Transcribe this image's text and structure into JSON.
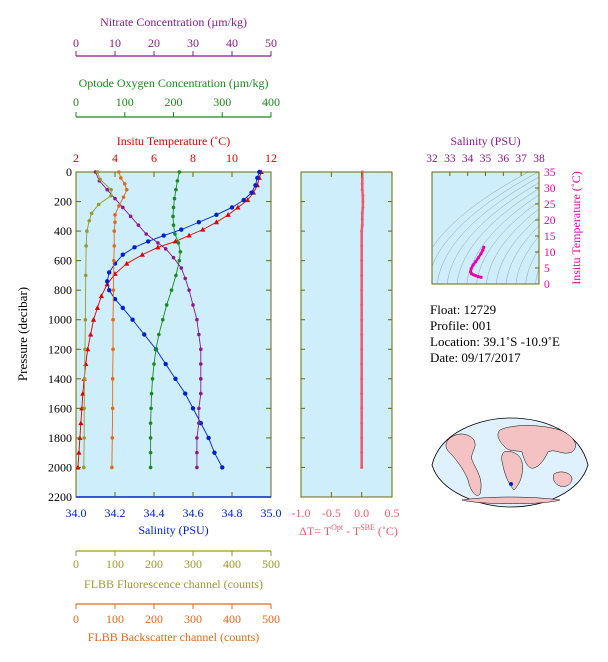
{
  "colors": {
    "nitrate": "#8b1a8b",
    "oxygen": "#1a8a1a",
    "temperature": "#e00000",
    "salinity": "#0022cc",
    "fluorescence": "#9a9a2a",
    "backscatter": "#e06a1a",
    "delta": "#ee5a6a",
    "panel_bg": "#cdeefa",
    "frame": "#6b6b00",
    "ts_accent": "#ee00aa"
  },
  "chart_data": [
    {
      "type": "line",
      "panel": "main-profile",
      "ylabel": "Pressure (decibar)",
      "ylim": [
        2200,
        0
      ],
      "yticks": [
        0,
        200,
        400,
        600,
        800,
        1000,
        1200,
        1400,
        1600,
        1800,
        2000,
        2200
      ],
      "axes": {
        "nitrate": {
          "label": "Nitrate Concentration (µm/kg)",
          "range": [
            0,
            50
          ],
          "ticks": [
            "0",
            "10",
            "20",
            "30",
            "40",
            "50"
          ]
        },
        "oxygen": {
          "label": "Optode Oxygen Concentration (µm/kg)",
          "range": [
            0,
            400
          ],
          "ticks": [
            "0",
            "100",
            "200",
            "300",
            "400"
          ]
        },
        "temperature": {
          "label": "Insitu Temperature (˚C)",
          "range": [
            2,
            12
          ],
          "ticks": [
            "2",
            "4",
            "6",
            "8",
            "10",
            "12"
          ]
        },
        "salinity": {
          "label": "Salinity (PSU)",
          "range": [
            34.0,
            35.0
          ],
          "ticks": [
            "34.0",
            "34.2",
            "34.4",
            "34.6",
            "34.8",
            "35.0"
          ]
        },
        "fluorescence": {
          "label": "FLBB Fluorescence channel (counts)",
          "range": [
            0,
            500
          ],
          "ticks": [
            "0",
            "100",
            "200",
            "300",
            "400",
            "500"
          ]
        },
        "backscatter": {
          "label": "FLBB Backscatter channel (counts)",
          "range": [
            0,
            500
          ],
          "ticks": [
            "0",
            "100",
            "200",
            "300",
            "400",
            "500"
          ]
        }
      },
      "series": [
        {
          "axis": "temperature",
          "points": [
            [
              11.5,
              0
            ],
            [
              11.4,
              40
            ],
            [
              11.3,
              90
            ],
            [
              11.1,
              140
            ],
            [
              10.8,
              190
            ],
            [
              10.3,
              240
            ],
            [
              9.8,
              290
            ],
            [
              9.2,
              340
            ],
            [
              8.5,
              390
            ],
            [
              7.8,
              430
            ],
            [
              7.1,
              470
            ],
            [
              6.2,
              510
            ],
            [
              5.4,
              560
            ],
            [
              4.6,
              620
            ],
            [
              4.0,
              690
            ],
            [
              3.6,
              760
            ],
            [
              3.3,
              840
            ],
            [
              3.1,
              920
            ],
            [
              2.9,
              1000
            ],
            [
              2.75,
              1100
            ],
            [
              2.6,
              1200
            ],
            [
              2.5,
              1300
            ],
            [
              2.42,
              1400
            ],
            [
              2.35,
              1500
            ],
            [
              2.3,
              1600
            ],
            [
              2.25,
              1700
            ],
            [
              2.2,
              1800
            ],
            [
              2.15,
              1900
            ],
            [
              2.1,
              2000
            ]
          ]
        },
        {
          "axis": "salinity",
          "points": [
            [
              34.94,
              0
            ],
            [
              34.93,
              40
            ],
            [
              34.92,
              90
            ],
            [
              34.9,
              140
            ],
            [
              34.86,
              190
            ],
            [
              34.8,
              240
            ],
            [
              34.72,
              290
            ],
            [
              34.63,
              340
            ],
            [
              34.54,
              390
            ],
            [
              34.45,
              430
            ],
            [
              34.37,
              470
            ],
            [
              34.3,
              510
            ],
            [
              34.24,
              560
            ],
            [
              34.2,
              620
            ],
            [
              34.17,
              680
            ],
            [
              34.16,
              740
            ],
            [
              34.17,
              800
            ],
            [
              34.2,
              860
            ],
            [
              34.24,
              920
            ],
            [
              34.29,
              1000
            ],
            [
              34.35,
              1100
            ],
            [
              34.41,
              1200
            ],
            [
              34.46,
              1300
            ],
            [
              34.51,
              1400
            ],
            [
              34.56,
              1500
            ],
            [
              34.6,
              1600
            ],
            [
              34.64,
              1700
            ],
            [
              34.68,
              1800
            ],
            [
              34.71,
              1900
            ],
            [
              34.75,
              2000
            ]
          ]
        },
        {
          "axis": "oxygen",
          "points": [
            [
              212,
              0
            ],
            [
              208,
              60
            ],
            [
              205,
              120
            ],
            [
              202,
              180
            ],
            [
              200,
              240
            ],
            [
              199,
              300
            ],
            [
              200,
              360
            ],
            [
              203,
              420
            ],
            [
              210,
              480
            ],
            [
              214,
              540
            ],
            [
              212,
              600
            ],
            [
              205,
              700
            ],
            [
              196,
              800
            ],
            [
              186,
              900
            ],
            [
              178,
              1000
            ],
            [
              170,
              1100
            ],
            [
              164,
              1200
            ],
            [
              160,
              1300
            ],
            [
              157,
              1400
            ],
            [
              155,
              1500
            ],
            [
              154,
              1600
            ],
            [
              153,
              1700
            ],
            [
              153,
              1800
            ],
            [
              153,
              1900
            ],
            [
              153,
              2000
            ]
          ]
        },
        {
          "axis": "nitrate",
          "points": [
            [
              5,
              0
            ],
            [
              6,
              60
            ],
            [
              8,
              120
            ],
            [
              10,
              180
            ],
            [
              12,
              240
            ],
            [
              14,
              300
            ],
            [
              16,
              360
            ],
            [
              18,
              420
            ],
            [
              21,
              480
            ],
            [
              23,
              520
            ],
            [
              25,
              580
            ],
            [
              27,
              650
            ],
            [
              28,
              720
            ],
            [
              29,
              800
            ],
            [
              30,
              900
            ],
            [
              31,
              1000
            ],
            [
              31.5,
              1100
            ],
            [
              32,
              1200
            ],
            [
              32,
              1300
            ],
            [
              32,
              1400
            ],
            [
              32,
              1500
            ],
            [
              31.5,
              1600
            ],
            [
              31.5,
              1700
            ],
            [
              31,
              1800
            ],
            [
              31,
              1900
            ],
            [
              31,
              2000
            ]
          ]
        },
        {
          "axis": "fluorescence",
          "points": [
            [
              55,
              0
            ],
            [
              62,
              50
            ],
            [
              90,
              120
            ],
            [
              90,
              160
            ],
            [
              58,
              220
            ],
            [
              40,
              280
            ],
            [
              34,
              330
            ],
            [
              28,
              400
            ],
            [
              26,
              500
            ],
            [
              25,
              700
            ],
            [
              24,
              1000
            ],
            [
              23,
              1200
            ],
            [
              22,
              1400
            ],
            [
              21,
              1600
            ],
            [
              21,
              1800
            ],
            [
              20,
              2000
            ]
          ]
        },
        {
          "axis": "backscatter",
          "points": [
            [
              110,
              0
            ],
            [
              115,
              40
            ],
            [
              125,
              80
            ],
            [
              130,
              120
            ],
            [
              122,
              170
            ],
            [
              110,
              230
            ],
            [
              100,
              290
            ],
            [
              100,
              340
            ],
            [
              98,
              400
            ],
            [
              98,
              500
            ],
            [
              97,
              600
            ],
            [
              96,
              800
            ],
            [
              95,
              1000
            ],
            [
              95,
              1200
            ],
            [
              94,
              1400
            ],
            [
              94,
              1600
            ],
            [
              93,
              1800
            ],
            [
              92,
              2000
            ]
          ]
        }
      ]
    },
    {
      "type": "line",
      "panel": "delta-temperature",
      "xlabel": "ΔT= T^Opt - T^SBE (˚C)",
      "xlim": [
        -1.0,
        0.5
      ],
      "xticks": [
        "-1.0",
        "-0.5",
        "0.0",
        "0.5"
      ],
      "ylim": [
        2200,
        0
      ],
      "series": [
        {
          "name": "dT",
          "points": [
            [
              0.01,
              0
            ],
            [
              0.01,
              40
            ],
            [
              0.01,
              80
            ],
            [
              0.01,
              120
            ],
            [
              0.02,
              160
            ],
            [
              0.02,
              200
            ],
            [
              0.02,
              240
            ],
            [
              0.01,
              280
            ],
            [
              0.01,
              320
            ],
            [
              0.01,
              360
            ],
            [
              0.0,
              400
            ],
            [
              0.0,
              500
            ],
            [
              0.0,
              600
            ],
            [
              0.0,
              700
            ],
            [
              0.0,
              800
            ],
            [
              0.0,
              900
            ],
            [
              0.0,
              1000
            ],
            [
              0.0,
              1100
            ],
            [
              0.0,
              1200
            ],
            [
              0.0,
              1300
            ],
            [
              0.0,
              1400
            ],
            [
              0.0,
              1500
            ],
            [
              0.0,
              1600
            ],
            [
              0.0,
              1700
            ],
            [
              0.0,
              1800
            ],
            [
              0.0,
              1900
            ],
            [
              0.0,
              2000
            ]
          ]
        }
      ]
    },
    {
      "type": "scatter",
      "panel": "ts-diagram",
      "title": "Salinity (PSU)",
      "ylabel": "Insitu Temperature (˚C)",
      "xlim": [
        32,
        38
      ],
      "xticks": [
        "32",
        "33",
        "34",
        "35",
        "36",
        "37",
        "38"
      ],
      "ylim": [
        0,
        35
      ],
      "yticks": [
        "0",
        "5",
        "10",
        "15",
        "20",
        "25",
        "30",
        "35"
      ],
      "series": [
        {
          "name": "ts",
          "points": [
            [
              34.9,
              11.5
            ],
            [
              34.85,
              10.6
            ],
            [
              34.75,
              9.5
            ],
            [
              34.6,
              8.2
            ],
            [
              34.45,
              7.0
            ],
            [
              34.3,
              5.9
            ],
            [
              34.2,
              4.8
            ],
            [
              34.16,
              3.8
            ],
            [
              34.22,
              3.2
            ],
            [
              34.32,
              2.9
            ],
            [
              34.45,
              2.6
            ],
            [
              34.6,
              2.3
            ],
            [
              34.75,
              2.1
            ]
          ]
        }
      ]
    }
  ],
  "info": {
    "float": "Float:  12729",
    "profile": "Profile:  001",
    "location": "Location:  39.1˚S  -10.9˚E",
    "date": "Date:  09/17/2017"
  }
}
